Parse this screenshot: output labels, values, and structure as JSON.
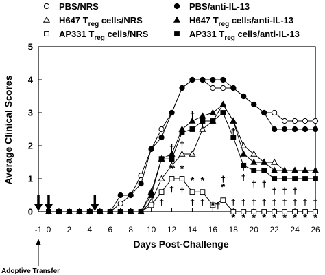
{
  "chart_data": {
    "type": "line",
    "xlabel": "Days Post-Challenge",
    "ylabel": "Average Clinical Scores",
    "xlim": [
      -1,
      26
    ],
    "ylim": [
      0,
      5
    ],
    "x_ticks": [
      -1,
      0,
      2,
      4,
      6,
      8,
      10,
      12,
      14,
      16,
      18,
      20,
      22,
      24,
      26
    ],
    "y_ticks": [
      0,
      1,
      2,
      3,
      4,
      5
    ],
    "grid": false,
    "legend_position": "top",
    "legend": [
      {
        "key": "pbs_nrs",
        "label": "PBS/NRS"
      },
      {
        "key": "pbs_anti",
        "label": "PBS/anti-IL-13"
      },
      {
        "key": "h647_nrs",
        "label_pre": "H647 T",
        "label_sub": "reg",
        "label_post": " cells/NRS"
      },
      {
        "key": "h647_anti",
        "label_pre": "H647 T",
        "label_sub": "reg",
        "label_post": " cells/anti-IL-13"
      },
      {
        "key": "ap331_nrs",
        "label_pre": "AP331 T",
        "label_sub": "reg",
        "label_post": " cells/NRS"
      },
      {
        "key": "ap331_anti",
        "label_pre": "AP331 T",
        "label_sub": "reg",
        "label_post": " cells/anti-IL-13"
      }
    ],
    "series": [
      {
        "key": "pbs_nrs",
        "marker": "circle",
        "filled": false,
        "x": [
          0,
          1,
          2,
          3,
          4,
          5,
          6,
          7,
          8,
          9,
          10,
          11,
          12,
          13,
          14,
          15,
          16,
          17,
          18,
          19,
          20,
          21,
          22,
          23,
          24,
          25,
          26
        ],
        "y": [
          0,
          0,
          0,
          0,
          0,
          0,
          0,
          0.25,
          0.5,
          1.1,
          1.9,
          2.5,
          3.0,
          3.75,
          4.0,
          4.0,
          3.75,
          3.75,
          3.75,
          3.5,
          3.25,
          3.0,
          3.0,
          2.75,
          2.75,
          2.75,
          2.75
        ]
      },
      {
        "key": "pbs_anti",
        "marker": "circle",
        "filled": true,
        "x": [
          0,
          1,
          2,
          3,
          4,
          5,
          6,
          7,
          8,
          9,
          10,
          11,
          12,
          13,
          14,
          15,
          16,
          17,
          18,
          19,
          20,
          21,
          22,
          23,
          24,
          25,
          26
        ],
        "y": [
          0,
          0,
          0,
          0,
          0,
          0,
          0,
          0.5,
          0.5,
          0.85,
          1.9,
          2.25,
          3.0,
          3.75,
          4.0,
          4.0,
          4.0,
          4.0,
          3.75,
          3.5,
          3.25,
          3.0,
          2.5,
          2.5,
          2.5,
          2.5,
          2.5
        ]
      },
      {
        "key": "h647_nrs",
        "marker": "triangle",
        "filled": false,
        "x": [
          0,
          1,
          2,
          3,
          4,
          5,
          6,
          7,
          8,
          9,
          10,
          11,
          12,
          13,
          14,
          15,
          16,
          17,
          18,
          19,
          20,
          21,
          22,
          23,
          24,
          25,
          26
        ],
        "y": [
          0,
          0,
          0,
          0,
          0,
          0,
          0,
          0,
          0,
          0,
          0.3,
          1.0,
          1.4,
          1.75,
          1.75,
          2.5,
          2.75,
          3.25,
          2.75,
          2.0,
          1.75,
          1.5,
          1.5,
          1.25,
          1.25,
          1.25,
          1.25
        ]
      },
      {
        "key": "h647_anti",
        "marker": "triangle",
        "filled": true,
        "x": [
          0,
          1,
          2,
          3,
          4,
          5,
          6,
          7,
          8,
          9,
          10,
          11,
          12,
          13,
          14,
          15,
          16,
          17,
          18,
          19,
          20,
          21,
          22,
          23,
          24,
          25,
          26
        ],
        "y": [
          0,
          0,
          0,
          0,
          0,
          0,
          0,
          0,
          0,
          0,
          0.6,
          1.6,
          1.75,
          2.5,
          2.75,
          2.9,
          3.0,
          3.25,
          2.75,
          1.75,
          1.5,
          1.5,
          1.25,
          1.25,
          1.25,
          1.25,
          1.25
        ]
      },
      {
        "key": "ap331_nrs",
        "marker": "square",
        "filled": false,
        "x": [
          0,
          1,
          2,
          3,
          4,
          5,
          6,
          7,
          8,
          9,
          10,
          11,
          12,
          13,
          14,
          15,
          16,
          17,
          18,
          19,
          20,
          21,
          22,
          23,
          24,
          25,
          26
        ],
        "y": [
          0,
          0,
          0,
          0,
          0,
          0,
          0,
          0,
          0,
          0,
          0.2,
          0.6,
          1.0,
          1.0,
          0.6,
          0.6,
          0.2,
          0.35,
          0,
          0,
          0,
          0,
          0,
          0,
          0,
          0,
          0
        ]
      },
      {
        "key": "ap331_anti",
        "marker": "square",
        "filled": true,
        "x": [
          0,
          1,
          2,
          3,
          4,
          5,
          6,
          7,
          8,
          9,
          10,
          11,
          12,
          13,
          14,
          15,
          16,
          17,
          18,
          19,
          20,
          21,
          22,
          23,
          24,
          25,
          26
        ],
        "y": [
          0,
          0,
          0,
          0,
          0,
          0,
          0,
          0,
          0,
          0,
          0.5,
          1.6,
          1.6,
          2.4,
          2.5,
          2.75,
          2.75,
          3.0,
          2.25,
          1.4,
          1.25,
          1.25,
          1.0,
          1.0,
          1.0,
          1.0,
          1.0
        ]
      }
    ],
    "annotations": [
      {
        "text": "†",
        "x": 11,
        "y": 0.3
      },
      {
        "text": "*",
        "x": 12,
        "y": 1.3
      },
      {
        "text": "*",
        "x": 13,
        "y": 1.3
      },
      {
        "text": "†",
        "x": 12,
        "y": 0.7
      },
      {
        "text": "†",
        "x": 13,
        "y": 0.65
      },
      {
        "text": "†",
        "x": 12,
        "y": 1.95
      },
      {
        "text": "†",
        "x": 13,
        "y": 2.05
      },
      {
        "text": "†",
        "x": 14,
        "y": 2.95
      },
      {
        "text": "†",
        "x": 15,
        "y": 2.65
      },
      {
        "text": "*",
        "x": 14,
        "y": 0.95
      },
      {
        "text": "†",
        "x": 14,
        "y": 0.3
      },
      {
        "text": "*",
        "x": 15,
        "y": 0.95
      },
      {
        "text": "†",
        "x": 15,
        "y": 0.3
      },
      {
        "text": "*",
        "x": 16,
        "y": 0.2
      },
      {
        "text": "†",
        "x": 16.5,
        "y": 0.2
      },
      {
        "text": "*",
        "x": 17,
        "y": 0.75
      },
      {
        "text": "†",
        "x": 17,
        "y": 1.0
      },
      {
        "text": "†",
        "x": 18,
        "y": 2.45
      },
      {
        "text": "†",
        "x": 19,
        "y": 1.35
      },
      {
        "text": "†",
        "x": 19,
        "y": 1.05
      },
      {
        "text": "†",
        "x": 20,
        "y": 0.85
      },
      {
        "text": "†",
        "x": 21,
        "y": 0.85
      },
      {
        "text": "†",
        "x": 22,
        "y": 0.65
      },
      {
        "text": "†",
        "x": 23,
        "y": 0.65
      },
      {
        "text": "†",
        "x": 24,
        "y": 0.65
      },
      {
        "text": "†",
        "x": 18,
        "y": 0.3
      },
      {
        "text": "†",
        "x": 19,
        "y": 0.3
      },
      {
        "text": "†",
        "x": 20,
        "y": 0.3
      },
      {
        "text": "†",
        "x": 21,
        "y": 0.3
      },
      {
        "text": "†",
        "x": 22,
        "y": 0.3
      },
      {
        "text": "†",
        "x": 23,
        "y": 0.3
      },
      {
        "text": "†",
        "x": 24,
        "y": 0.3
      },
      {
        "text": "†",
        "x": 25,
        "y": 0.3
      },
      {
        "text": "†",
        "x": 26,
        "y": 0.3
      },
      {
        "text": "*",
        "x": 18,
        "y": -0.18
      },
      {
        "text": "*",
        "x": 19,
        "y": -0.18
      },
      {
        "text": "*",
        "x": 20,
        "y": -0.18
      },
      {
        "text": "*",
        "x": 21,
        "y": -0.18
      },
      {
        "text": "*",
        "x": 22,
        "y": -0.18
      },
      {
        "text": "*",
        "x": 23,
        "y": -0.18
      },
      {
        "text": "*",
        "x": 24,
        "y": -0.18
      },
      {
        "text": "*",
        "x": 25,
        "y": -0.18
      },
      {
        "text": "*",
        "x": 26,
        "y": -0.18
      }
    ],
    "treatment_days": [
      -1,
      0,
      4.5
    ],
    "adoptive_transfer": {
      "x": -1,
      "label": "Adoptive Transfer"
    }
  }
}
